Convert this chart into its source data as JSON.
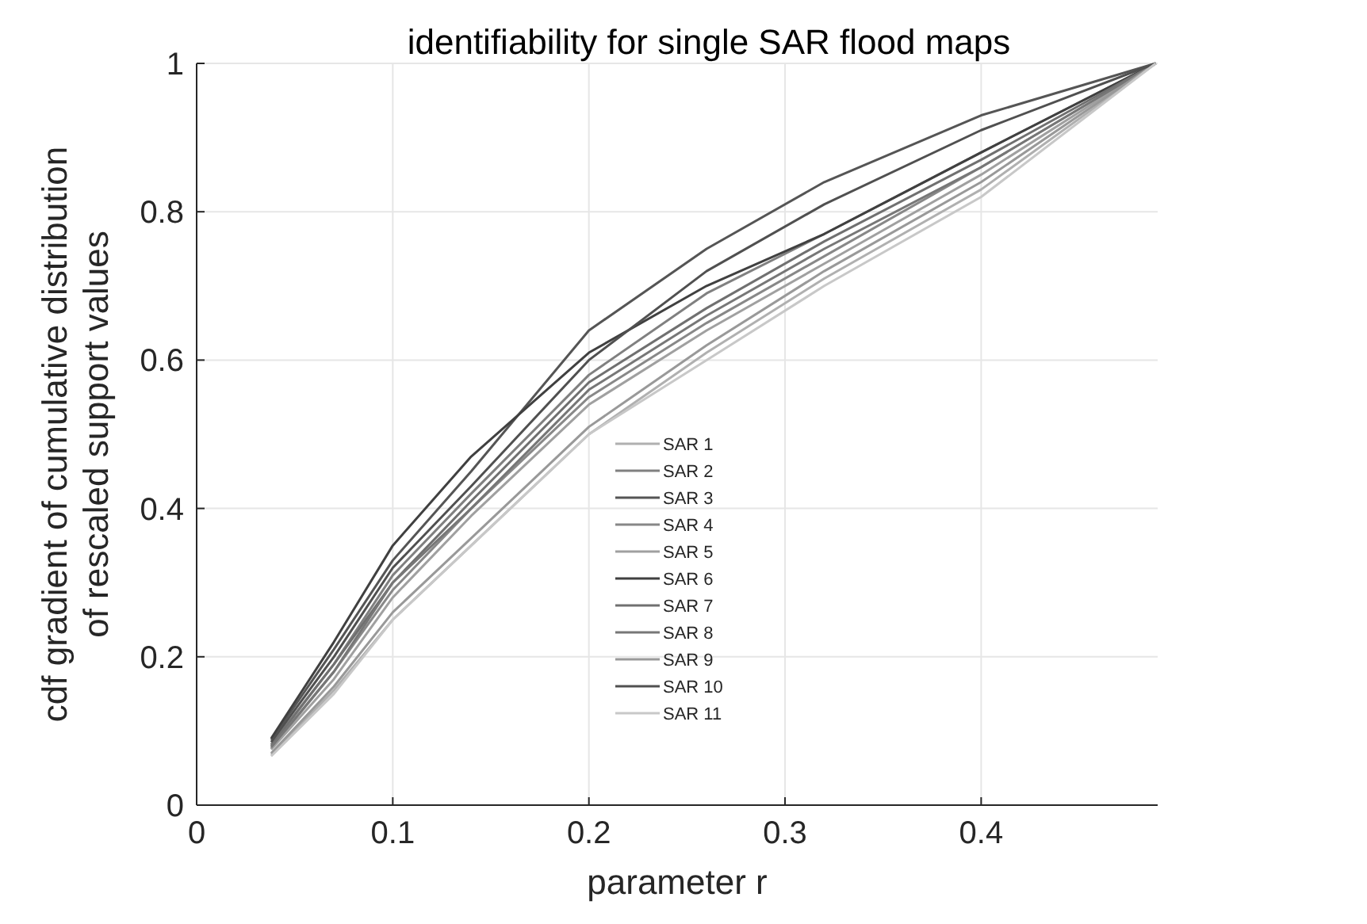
{
  "chart_data": {
    "type": "line",
    "title": "identifiability for single SAR flood maps",
    "xlabel": "parameter r",
    "ylabel": "cdf gradient of cumulative distribution\nof rescaled support values",
    "x": [
      0.038,
      0.07,
      0.1,
      0.14,
      0.2,
      0.26,
      0.32,
      0.4,
      0.489
    ],
    "xlim": [
      0,
      0.49
    ],
    "xticks": [
      0,
      0.1,
      0.2,
      0.3,
      0.4
    ],
    "ylim": [
      0,
      1
    ],
    "yticks": [
      0,
      0.2,
      0.4,
      0.6,
      0.8,
      1
    ],
    "grid": true,
    "legend": "center",
    "line_style": "solid",
    "marker": "none",
    "series": [
      {
        "name": "SAR 1",
        "color": "#b0b0b0",
        "values": [
          0.068,
          0.155,
          0.25,
          0.35,
          0.5,
          0.61,
          0.71,
          0.83,
          1
        ]
      },
      {
        "name": "SAR 2",
        "color": "#808080",
        "values": [
          0.082,
          0.19,
          0.31,
          0.42,
          0.58,
          0.69,
          0.77,
          0.88,
          1
        ]
      },
      {
        "name": "SAR 3",
        "color": "#555555",
        "values": [
          0.088,
          0.21,
          0.33,
          0.45,
          0.64,
          0.75,
          0.84,
          0.93,
          1
        ]
      },
      {
        "name": "SAR 4",
        "color": "#888888",
        "values": [
          0.076,
          0.18,
          0.29,
          0.4,
          0.55,
          0.65,
          0.74,
          0.86,
          1
        ]
      },
      {
        "name": "SAR 5",
        "color": "#a0a0a0",
        "values": [
          0.075,
          0.17,
          0.28,
          0.39,
          0.54,
          0.64,
          0.73,
          0.85,
          1
        ]
      },
      {
        "name": "SAR 6",
        "color": "#404040",
        "values": [
          0.09,
          0.22,
          0.35,
          0.47,
          0.61,
          0.7,
          0.77,
          0.88,
          1
        ]
      },
      {
        "name": "SAR 7",
        "color": "#707070",
        "values": [
          0.08,
          0.19,
          0.3,
          0.41,
          0.57,
          0.67,
          0.76,
          0.87,
          1
        ]
      },
      {
        "name": "SAR 8",
        "color": "#777777",
        "values": [
          0.078,
          0.18,
          0.3,
          0.4,
          0.56,
          0.66,
          0.75,
          0.86,
          1
        ]
      },
      {
        "name": "SAR 9",
        "color": "#999999",
        "values": [
          0.07,
          0.16,
          0.26,
          0.36,
          0.51,
          0.62,
          0.72,
          0.84,
          1
        ]
      },
      {
        "name": "SAR 10",
        "color": "#505050",
        "values": [
          0.085,
          0.2,
          0.32,
          0.43,
          0.6,
          0.72,
          0.81,
          0.91,
          1
        ]
      },
      {
        "name": "SAR 11",
        "color": "#c8c8c8",
        "values": [
          0.066,
          0.15,
          0.25,
          0.35,
          0.5,
          0.6,
          0.7,
          0.82,
          1
        ]
      }
    ]
  }
}
